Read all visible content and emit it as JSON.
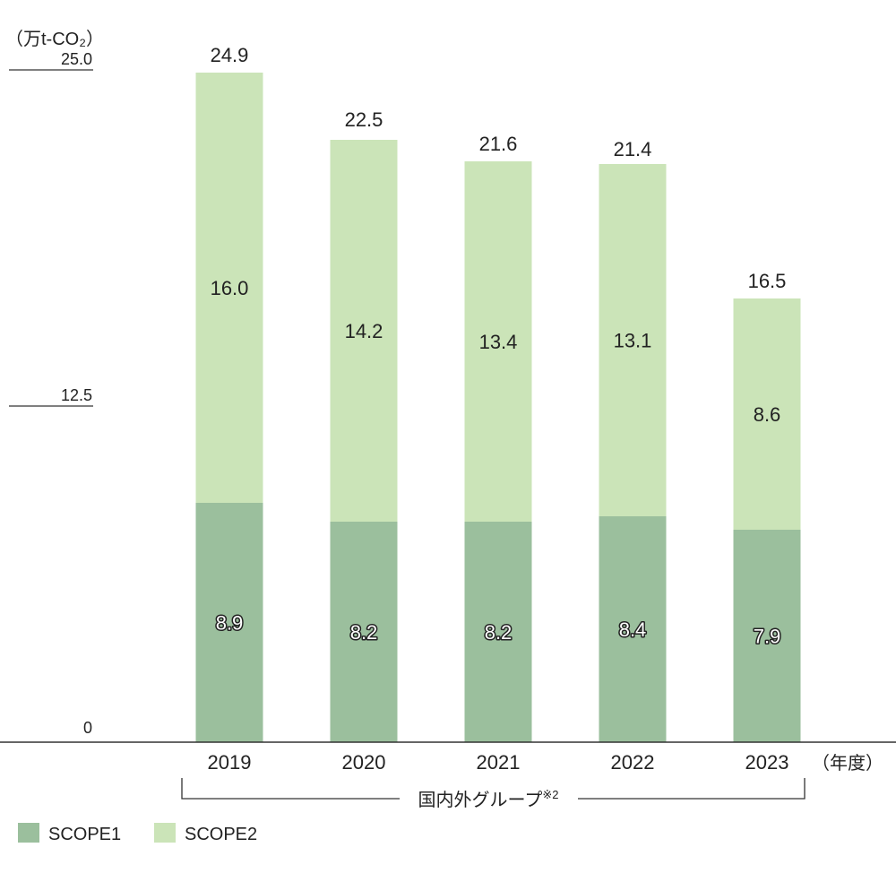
{
  "chart_data": {
    "type": "bar",
    "stacked": true,
    "unit_label": "（万t-CO₂）",
    "x_unit_label": "（年度）",
    "group_label": "国内外グループ",
    "group_note": "※2",
    "categories": [
      "2019",
      "2020",
      "2021",
      "2022",
      "2023"
    ],
    "series": [
      {
        "name": "SCOPE1",
        "color": "#9bbf9d",
        "values": [
          8.9,
          8.2,
          8.2,
          8.4,
          7.9
        ],
        "value_labels": [
          "8.9",
          "8.2",
          "8.2",
          "8.4",
          "7.9"
        ]
      },
      {
        "name": "SCOPE2",
        "color": "#cbe4b8",
        "values": [
          16.0,
          14.2,
          13.4,
          13.1,
          8.6
        ],
        "value_labels": [
          "16.0",
          "14.2",
          "13.4",
          "13.1",
          "8.6"
        ]
      }
    ],
    "totals": [
      "24.9",
      "22.5",
      "21.6",
      "21.4",
      "16.5"
    ],
    "total_values": [
      24.9,
      22.5,
      21.6,
      21.4,
      16.5
    ],
    "yticks": [
      "0",
      "12.5",
      "25.0"
    ],
    "ylim": [
      0,
      25.0
    ],
    "legend_position": "bottom-left",
    "grid": false
  }
}
